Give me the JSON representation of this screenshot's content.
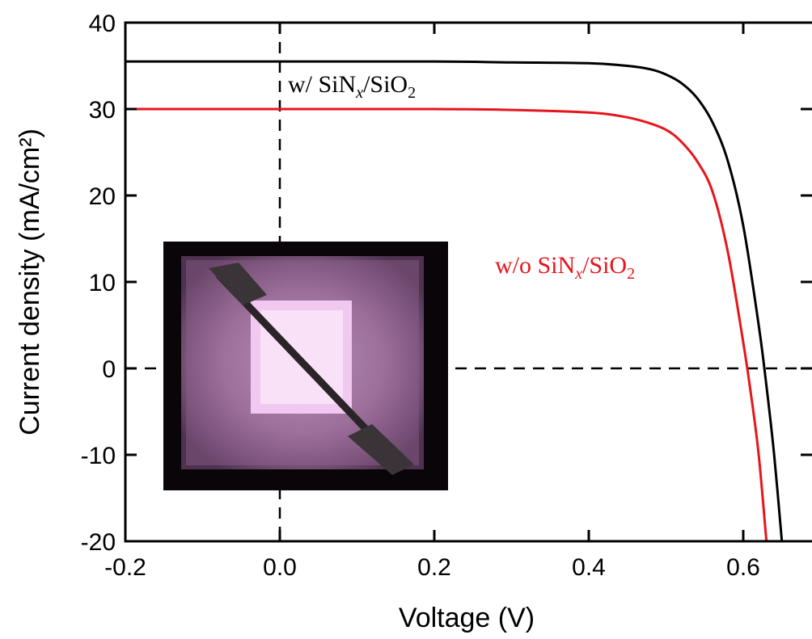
{
  "chart_data": {
    "type": "line",
    "title": "",
    "xlabel": "Voltage (V)",
    "ylabel": "Current density (mA/cm²)",
    "xlim": [
      -0.2,
      0.7
    ],
    "ylim": [
      -20,
      40
    ],
    "xticks": [
      -0.2,
      0.0,
      0.2,
      0.4,
      0.6
    ],
    "xtick_labels": [
      "-0.2",
      "0.0",
      "0.2",
      "0.4",
      "0.6"
    ],
    "yticks": [
      -20,
      -10,
      0,
      10,
      20,
      30,
      40
    ],
    "ytick_labels": [
      "-20",
      "-10",
      "0",
      "10",
      "20",
      "30",
      "40"
    ],
    "grid": false,
    "reference_lines": [
      {
        "orientation": "vertical",
        "x": 0.0,
        "style": "dashed"
      },
      {
        "orientation": "horizontal",
        "y": 0,
        "style": "dashed"
      }
    ],
    "series": [
      {
        "color": "#000000",
        "label_parts": {
          "base": "w/ SiN",
          "sub1": "x",
          "mid": "/SiO",
          "sub2": "2"
        },
        "x": [
          -0.2,
          0.0,
          0.2,
          0.3,
          0.4,
          0.45,
          0.48,
          0.5,
          0.52,
          0.54,
          0.56,
          0.58,
          0.6,
          0.62,
          0.63,
          0.64,
          0.65
        ],
        "y": [
          35.5,
          35.5,
          35.5,
          35.4,
          35.3,
          35.0,
          34.6,
          34.0,
          33.0,
          31.3,
          28.5,
          24.0,
          16.5,
          5.0,
          -2.0,
          -10.0,
          -20.0
        ]
      },
      {
        "color": "#e8141c",
        "label_parts": {
          "base": "w/o SiN",
          "sub1": "x",
          "mid": "/SiO",
          "sub2": "2"
        },
        "x": [
          -0.2,
          0.0,
          0.2,
          0.3,
          0.4,
          0.44,
          0.47,
          0.5,
          0.52,
          0.54,
          0.56,
          0.58,
          0.6,
          0.61,
          0.62,
          0.63
        ],
        "y": [
          30.0,
          30.0,
          30.0,
          29.9,
          29.6,
          29.2,
          28.6,
          27.6,
          26.2,
          24.0,
          20.5,
          13.5,
          3.0,
          -3.0,
          -10.0,
          -20.0
        ]
      }
    ]
  },
  "inset": {
    "kind": "photo",
    "content": "photograph of solar cell sample"
  }
}
